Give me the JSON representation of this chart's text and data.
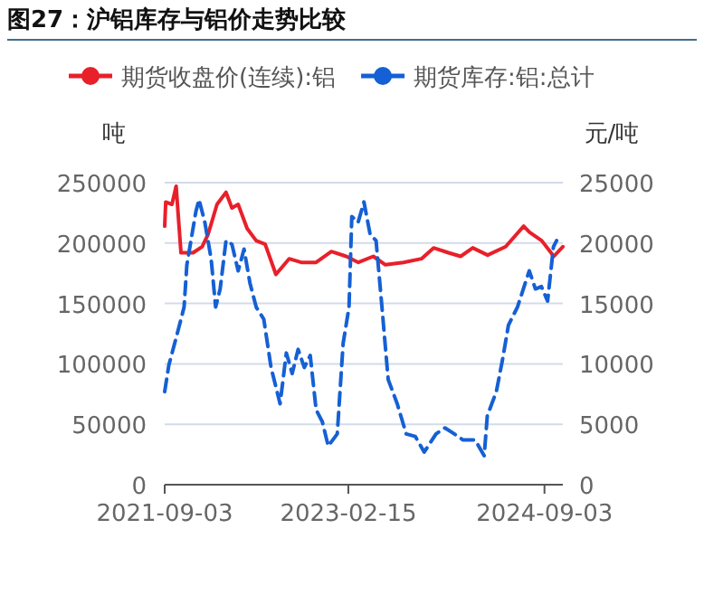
{
  "chart_data": {
    "type": "line",
    "title": "图27：沪铝库存与铝价走势比较",
    "ylabel": "吨",
    "y2label": "元/吨",
    "xlim": [
      "2021-09-03",
      "2024-10-26"
    ],
    "xticks": [
      "2021-09-03",
      "2023-02-15",
      "2024-09-03"
    ],
    "ylim": [
      0,
      250000
    ],
    "yticks": [
      0,
      50000,
      100000,
      150000,
      200000,
      250000
    ],
    "y2lim": [
      0,
      25000
    ],
    "y2ticks": [
      0,
      5000,
      10000,
      15000,
      20000,
      25000
    ],
    "grid": "y",
    "legend": "top",
    "series": [
      {
        "name": "期货收盘价(连续):铝",
        "color": "#e8202a",
        "axis": "y2",
        "line_style": "solid",
        "x": [
          "2021-09-03",
          "2021-09-06",
          "2021-09-24",
          "2021-10-06",
          "2021-10-20",
          "2021-11-24",
          "2021-12-20",
          "2022-01-06",
          "2022-02-01",
          "2022-02-27",
          "2022-03-16",
          "2022-04-03",
          "2022-04-29",
          "2022-05-25",
          "2022-06-20",
          "2022-07-21",
          "2022-08-28",
          "2022-10-02",
          "2022-11-14",
          "2022-12-28",
          "2023-02-09",
          "2023-03-16",
          "2023-04-28",
          "2023-06-02",
          "2023-07-24",
          "2023-09-14",
          "2023-10-19",
          "2023-12-01",
          "2024-01-05",
          "2024-02-09",
          "2024-03-23",
          "2024-05-14",
          "2024-07-05",
          "2024-07-22",
          "2024-08-26",
          "2024-09-30",
          "2024-10-26"
        ],
        "values": [
          21400,
          23400,
          23200,
          24700,
          19200,
          19200,
          19700,
          20700,
          23200,
          24200,
          22900,
          23200,
          21200,
          20200,
          19900,
          17400,
          18700,
          18400,
          18400,
          19300,
          18900,
          18400,
          18900,
          18200,
          18400,
          18700,
          19600,
          19200,
          18900,
          19600,
          19000,
          19700,
          21400,
          20900,
          20200,
          18900,
          19700
        ]
      },
      {
        "name": "期货库存:铝:总计",
        "color": "#1560d4",
        "axis": "y",
        "line_style": "dashed",
        "x": [
          "2021-09-03",
          "2021-09-15",
          "2021-10-11",
          "2021-10-29",
          "2021-11-06",
          "2021-12-02",
          "2021-12-11",
          "2021-12-28",
          "2022-01-15",
          "2022-01-28",
          "2022-02-10",
          "2022-02-27",
          "2022-03-16",
          "2022-04-03",
          "2022-04-20",
          "2022-05-07",
          "2022-05-25",
          "2022-06-16",
          "2022-07-07",
          "2022-08-02",
          "2022-08-20",
          "2022-09-06",
          "2022-09-23",
          "2022-10-11",
          "2022-10-28",
          "2022-11-14",
          "2022-12-02",
          "2022-12-19",
          "2023-01-14",
          "2023-01-31",
          "2023-02-17",
          "2023-02-25",
          "2023-03-15",
          "2023-04-01",
          "2023-04-19",
          "2023-05-06",
          "2023-05-23",
          "2023-06-10",
          "2023-07-06",
          "2023-08-01",
          "2023-08-27",
          "2023-09-22",
          "2023-10-26",
          "2023-11-21",
          "2023-12-18",
          "2024-01-12",
          "2024-02-16",
          "2024-03-13",
          "2024-03-22",
          "2024-04-17",
          "2024-05-04",
          "2024-05-22",
          "2024-06-17",
          "2024-07-21",
          "2024-08-08",
          "2024-08-25",
          "2024-09-12",
          "2024-09-29",
          "2024-10-08"
        ],
        "values": [
          77000,
          99000,
          127000,
          147000,
          182000,
          226000,
          236000,
          217000,
          187000,
          147000,
          162000,
          202000,
          199000,
          177000,
          195000,
          167000,
          147000,
          137000,
          97000,
          67000,
          109000,
          92000,
          112000,
          97000,
          107000,
          62000,
          52000,
          32000,
          42000,
          117000,
          147000,
          222000,
          217000,
          234000,
          207000,
          202000,
          147000,
          87000,
          67000,
          42000,
          40000,
          27000,
          42000,
          47000,
          42000,
          37000,
          37000,
          24000,
          57000,
          77000,
          102000,
          132000,
          147000,
          177000,
          162000,
          164000,
          152000,
          197000,
          202000
        ]
      }
    ]
  }
}
